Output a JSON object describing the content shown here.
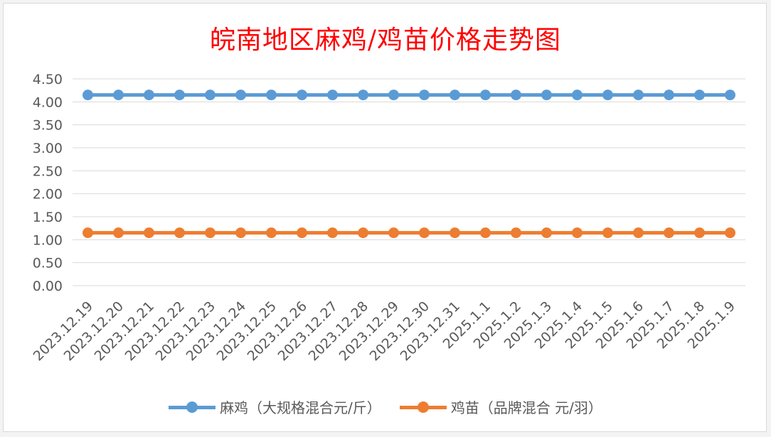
{
  "chart_data": {
    "type": "line",
    "title": "皖南地区麻鸡/鸡苗价格走势图",
    "categories": [
      "2023.12.19",
      "2023.12.20",
      "2023.12.21",
      "2023.12.22",
      "2023.12.23",
      "2023.12.24",
      "2023.12.25",
      "2023.12.26",
      "2023.12.27",
      "2023.12.28",
      "2023.12.29",
      "2023.12.30",
      "2023.12.31",
      "2025.1.1",
      "2025.1.2",
      "2025.1.3",
      "2025.1.4",
      "2025.1.5",
      "2025.1.6",
      "2025.1.7",
      "2025.1.8",
      "2025.1.9"
    ],
    "series": [
      {
        "name": "麻鸡（大规格混合元/斤）",
        "color": "#5b9bd5",
        "values": [
          4.15,
          4.15,
          4.15,
          4.15,
          4.15,
          4.15,
          4.15,
          4.15,
          4.15,
          4.15,
          4.15,
          4.15,
          4.15,
          4.15,
          4.15,
          4.15,
          4.15,
          4.15,
          4.15,
          4.15,
          4.15,
          4.15
        ]
      },
      {
        "name": "鸡苗（品牌混合 元/羽）",
        "color": "#ed7d31",
        "values": [
          1.15,
          1.15,
          1.15,
          1.15,
          1.15,
          1.15,
          1.15,
          1.15,
          1.15,
          1.15,
          1.15,
          1.15,
          1.15,
          1.15,
          1.15,
          1.15,
          1.15,
          1.15,
          1.15,
          1.15,
          1.15,
          1.15
        ]
      }
    ],
    "ylim": [
      0,
      4.5
    ],
    "yticks": [
      "0.00",
      "0.50",
      "1.00",
      "1.50",
      "2.00",
      "2.50",
      "3.00",
      "3.50",
      "4.00",
      "4.50"
    ],
    "grid": true,
    "legend": "bottom"
  }
}
